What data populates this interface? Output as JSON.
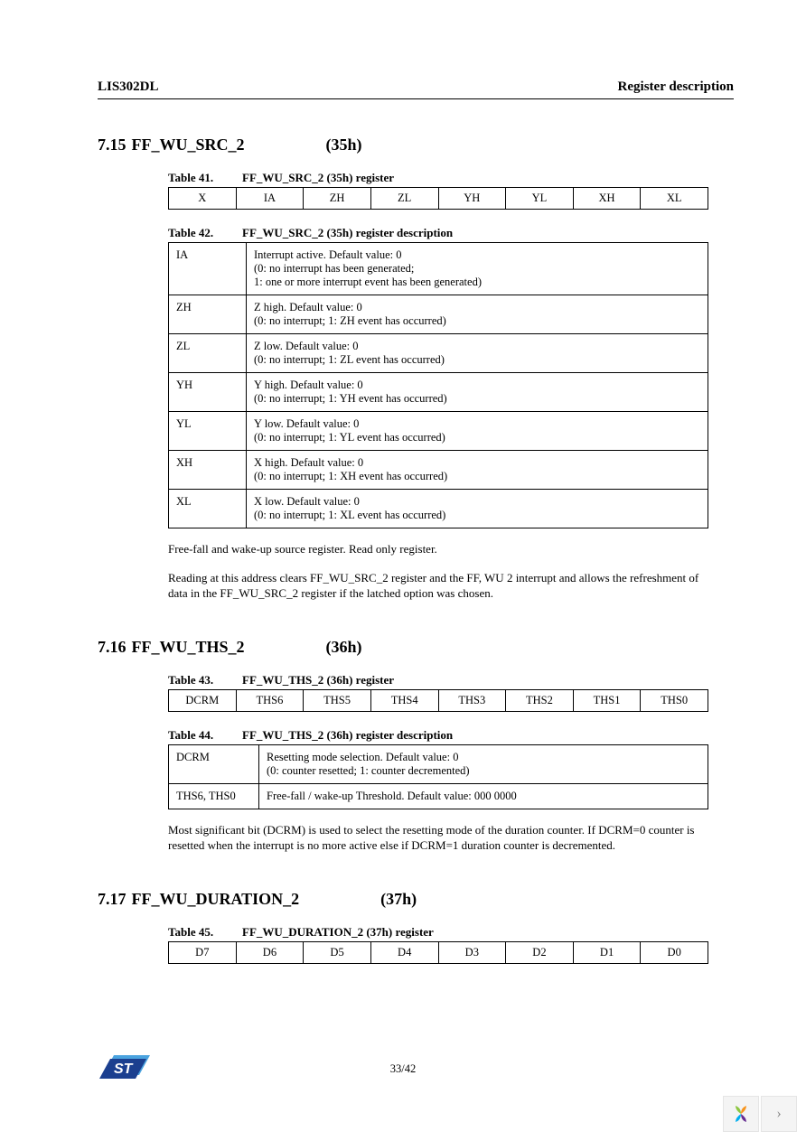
{
  "header": {
    "left": "LIS302DL",
    "right": "Register description"
  },
  "sections": [
    {
      "num": "7.15",
      "name": "FF_WU_SRC_2",
      "addr": "(35h)",
      "bit_table": {
        "num": "Table 41.",
        "title": "FF_WU_SRC_2 (35h) register",
        "cells": [
          "X",
          "IA",
          "ZH",
          "ZL",
          "YH",
          "YL",
          "XH",
          "XL"
        ]
      },
      "desc_table": {
        "num": "Table 42.",
        "title": "FF_WU_SRC_2 (35h) register description",
        "rows": [
          {
            "k": "IA",
            "v": "Interrupt active. Default value: 0\n(0: no interrupt has been generated;\n1: one or more interrupt event has been generated)"
          },
          {
            "k": "ZH",
            "v": "Z high. Default value: 0\n(0: no interrupt; 1: ZH event has occurred)"
          },
          {
            "k": "ZL",
            "v": "Z low. Default value: 0\n(0: no interrupt; 1: ZL event has occurred)"
          },
          {
            "k": "YH",
            "v": "Y high. Default value: 0\n(0: no interrupt; 1: YH event has occurred)"
          },
          {
            "k": "YL",
            "v": "Y low. Default value: 0\n(0: no interrupt; 1: YL event has occurred)"
          },
          {
            "k": "XH",
            "v": "X high. Default value: 0\n(0: no interrupt; 1: XH event has occurred)"
          },
          {
            "k": "XL",
            "v": "X low. Default value: 0\n(0: no interrupt; 1: XL event has occurred)"
          }
        ]
      },
      "paras": [
        "Free-fall and wake-up source register. Read only register.",
        "Reading at this address clears FF_WU_SRC_2 register and the FF, WU 2 interrupt and allows the refreshment of data in the FF_WU_SRC_2 register if the latched option was chosen."
      ]
    },
    {
      "num": "7.16",
      "name": "FF_WU_THS_2",
      "addr": "(36h)",
      "bit_table": {
        "num": "Table 43.",
        "title": "FF_WU_THS_2 (36h) register",
        "cells": [
          "DCRM",
          "THS6",
          "THS5",
          "THS4",
          "THS3",
          "THS2",
          "THS1",
          "THS0"
        ]
      },
      "desc_table": {
        "num": "Table 44.",
        "title": "FF_WU_THS_2 (36h) register description",
        "rows": [
          {
            "k": "DCRM",
            "v": "Resetting mode selection. Default value: 0\n(0: counter resetted; 1: counter decremented)"
          },
          {
            "k": "THS6, THS0",
            "v": "Free-fall / wake-up Threshold. Default value: 000 0000"
          }
        ],
        "kwidth": 100
      },
      "paras": [
        "Most significant bit (DCRM) is used to select the resetting mode of the duration counter. If DCRM=0 counter is resetted when the interrupt is no more active else if DCRM=1 duration counter is decremented."
      ]
    },
    {
      "num": "7.17",
      "name": "FF_WU_DURATION_2",
      "addr": "(37h)",
      "bit_table": {
        "num": "Table 45.",
        "title": "FF_WU_DURATION_2 (37h) register",
        "cells": [
          "D7",
          "D6",
          "D5",
          "D4",
          "D3",
          "D2",
          "D1",
          "D0"
        ]
      }
    }
  ],
  "page_number": "33/42",
  "logo_colors": {
    "blue_dark": "#1b3f8f",
    "blue_light": "#4aa3df",
    "white": "#ffffff"
  },
  "nav_icon_colors": [
    "#8cc63f",
    "#f7941d",
    "#662d91",
    "#00aeef"
  ]
}
